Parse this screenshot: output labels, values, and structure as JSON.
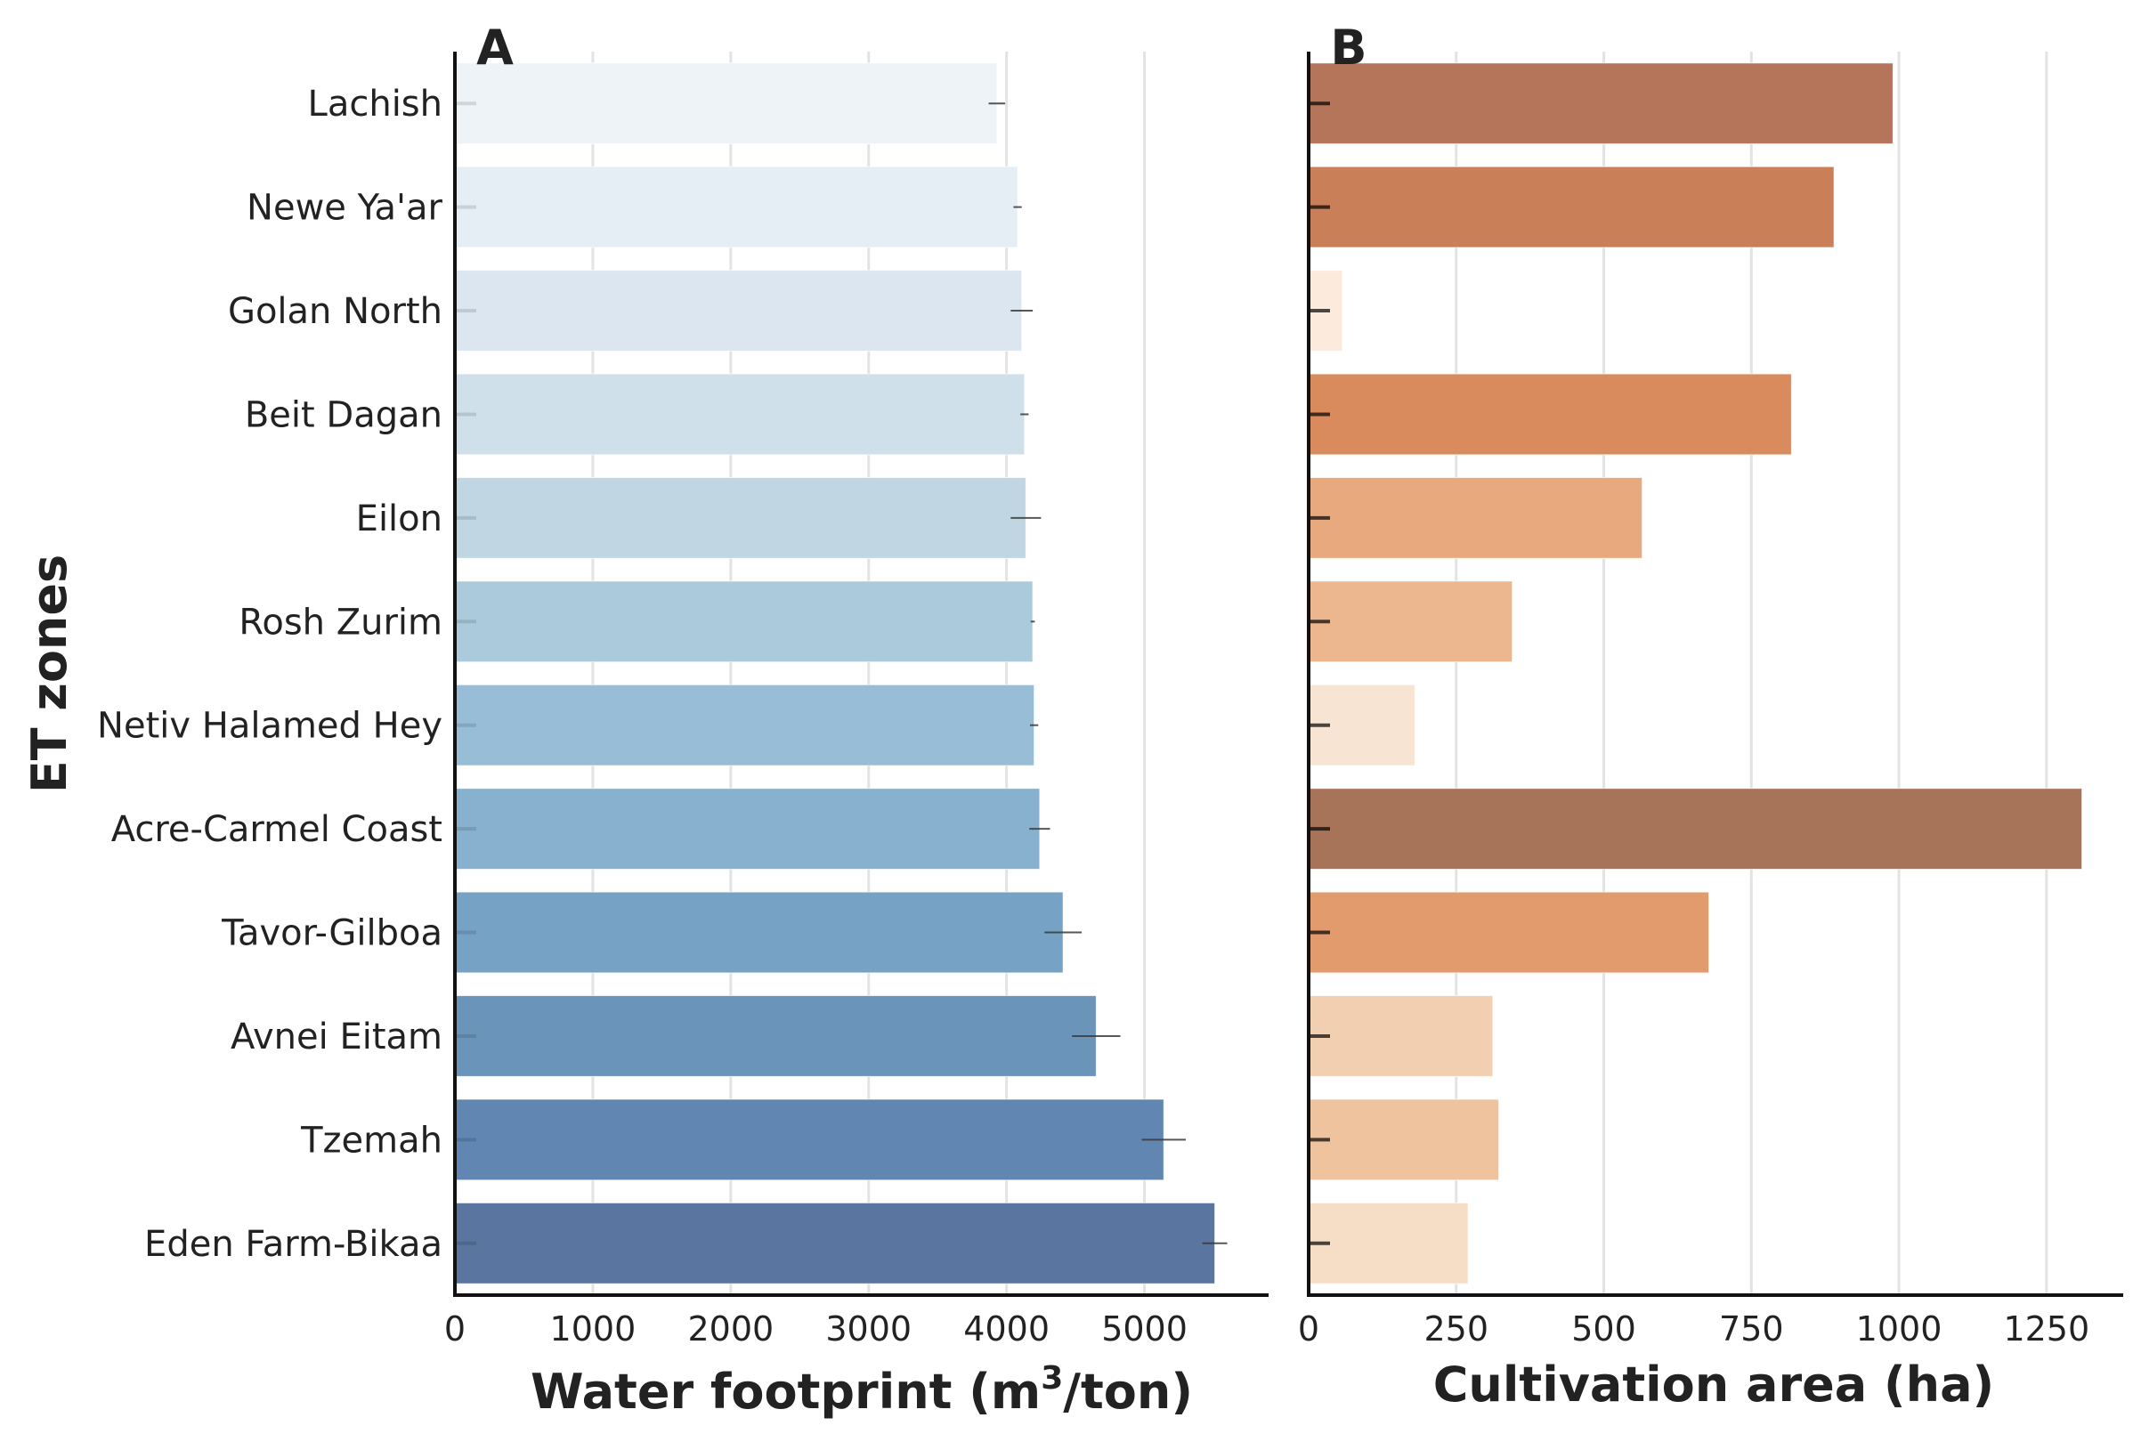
{
  "chart_data": [
    {
      "panel_label": "A",
      "type": "bar",
      "orientation": "horizontal",
      "ylabel": "ET zones",
      "xlabel_main": "Water footprint (m",
      "xlabel_sup": "3",
      "xlabel_tail": "/ton)",
      "xlim": [
        0,
        5900
      ],
      "xticks": [
        0,
        1000,
        2000,
        3000,
        4000,
        5000
      ],
      "grid": "vertical",
      "categories": [
        "Lachish",
        "Newe Ya'ar",
        "Golan North",
        "Beit Dagan",
        "Eilon",
        "Rosh Zurim",
        "Netiv Halamed Hey",
        "Acre-Carmel Coast",
        "Tavor-Gilboa",
        "Avnei Eitam",
        "Tzemah",
        "Eden Farm-Bikaa"
      ],
      "values": [
        3930,
        4080,
        4110,
        4130,
        4140,
        4190,
        4200,
        4240,
        4410,
        4650,
        5140,
        5510
      ],
      "errors": [
        60,
        30,
        80,
        30,
        110,
        15,
        30,
        75,
        135,
        175,
        160,
        90
      ],
      "colors": [
        "#eef3f8",
        "#e5edf5",
        "#dbe6f0",
        "#d0e0ea",
        "#c0d7e3",
        "#abcadb",
        "#98bdd6",
        "#88b1cf",
        "#76a2c6",
        "#6b94bb",
        "#6086b1",
        "#5975a0"
      ],
      "edge_ticks": 0.12
    },
    {
      "panel_label": "B",
      "type": "bar",
      "orientation": "horizontal",
      "xlabel": "Cultivation area (ha)",
      "xlim": [
        0,
        1380
      ],
      "xticks": [
        0,
        250,
        500,
        750,
        1000,
        1250
      ],
      "grid": "vertical",
      "categories": [
        "Lachish",
        "Newe Ya'ar",
        "Golan North",
        "Beit Dagan",
        "Eilon",
        "Rosh Zurim",
        "Netiv Halamed Hey",
        "Acre-Carmel Coast",
        "Tavor-Gilboa",
        "Avnei Eitam",
        "Tzemah",
        "Eden Farm-Bikaa"
      ],
      "values": [
        990,
        890,
        57,
        818,
        565,
        345,
        180,
        1310,
        678,
        312,
        322,
        270
      ],
      "colors": [
        "#b5755a",
        "#c98059",
        "#fcebdd",
        "#d98b5e",
        "#e9a97e",
        "#ecb78f",
        "#f8e4d3",
        "#a87459",
        "#e29b6c",
        "#f2cfb0",
        "#efc39e",
        "#f6dec6"
      ],
      "edge_ticks": 0.7
    }
  ]
}
